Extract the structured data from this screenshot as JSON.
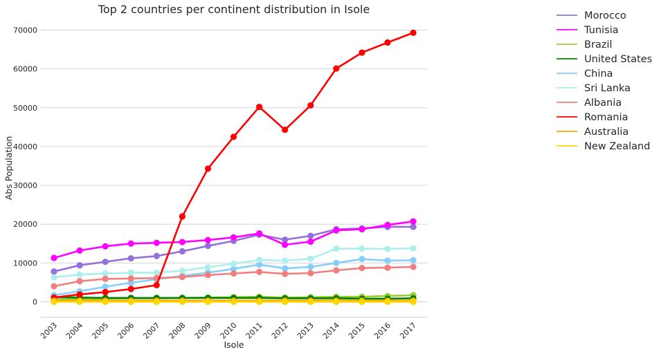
{
  "chart_data": {
    "type": "line",
    "title": "Top 2 countries per continent distribution in Isole",
    "xlabel": "Isole",
    "ylabel": "Abs Population",
    "x": [
      "2003",
      "2004",
      "2005",
      "2006",
      "2007",
      "2008",
      "2009",
      "2010",
      "2011",
      "2012",
      "2013",
      "2014",
      "2015",
      "2016",
      "2017"
    ],
    "ylim": [
      -4000,
      72000
    ],
    "yticks": [
      0,
      10000,
      20000,
      30000,
      40000,
      50000,
      60000,
      70000
    ],
    "grid": true,
    "legend_position": "outside-right",
    "series": [
      {
        "name": "Morocco",
        "color": "#9370db",
        "values": [
          7800,
          9400,
          10300,
          11200,
          11800,
          13000,
          14400,
          15700,
          17300,
          16000,
          17000,
          18700,
          18900,
          19300,
          19300
        ]
      },
      {
        "name": "Tunisia",
        "color": "#ff00ff",
        "values": [
          11300,
          13200,
          14300,
          15000,
          15200,
          15400,
          15900,
          16600,
          17600,
          14700,
          15500,
          18400,
          18700,
          19800,
          20700
        ]
      },
      {
        "name": "Brazil",
        "color": "#9acd32",
        "values": [
          600,
          700,
          800,
          900,
          900,
          1000,
          1100,
          1200,
          1300,
          1100,
          1200,
          1300,
          1300,
          1500,
          1700
        ]
      },
      {
        "name": "United States",
        "color": "#008000",
        "values": [
          1200,
          1100,
          1000,
          1000,
          1000,
          1000,
          1000,
          1000,
          1000,
          900,
          900,
          900,
          800,
          800,
          900
        ]
      },
      {
        "name": "China",
        "color": "#87cefa",
        "values": [
          1700,
          2700,
          3900,
          4900,
          5800,
          6700,
          7500,
          8500,
          9600,
          8600,
          9000,
          10000,
          11000,
          10600,
          10700
        ]
      },
      {
        "name": "Sri Lanka",
        "color": "#afeeee",
        "values": [
          6300,
          7000,
          7300,
          7500,
          7500,
          8000,
          8900,
          9800,
          10800,
          10600,
          11100,
          13700,
          13700,
          13600,
          13800
        ]
      },
      {
        "name": "Albania",
        "color": "#f08080",
        "values": [
          4000,
          5300,
          5900,
          6000,
          6100,
          6400,
          6900,
          7300,
          7700,
          7200,
          7400,
          8100,
          8700,
          8800,
          9000
        ]
      },
      {
        "name": "Romania",
        "color": "#ff0000",
        "values": [
          1100,
          1900,
          2500,
          3300,
          4300,
          22000,
          34300,
          42500,
          50200,
          44300,
          50600,
          60100,
          64200,
          66800,
          69300
        ]
      },
      {
        "name": "Australia",
        "color": "#ffa500",
        "values": [
          300,
          300,
          300,
          300,
          300,
          300,
          300,
          300,
          300,
          300,
          300,
          300,
          300,
          300,
          300
        ]
      },
      {
        "name": "New Zealand",
        "color": "#ffd700",
        "values": [
          0,
          0,
          0,
          0,
          0,
          0,
          0,
          0,
          0,
          0,
          0,
          0,
          0,
          0,
          0
        ]
      }
    ]
  }
}
